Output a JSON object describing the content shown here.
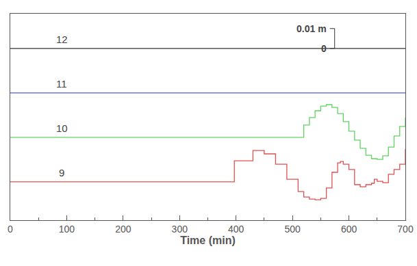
{
  "chart_data": {
    "type": "line",
    "x_label": "Time (min)",
    "xlim": [
      0,
      700
    ],
    "xticks": [
      0,
      100,
      200,
      300,
      400,
      500,
      600,
      700
    ],
    "ylim": [
      -0.0865,
      0.0175
    ],
    "tick_labels": "x",
    "grid": false,
    "line_style": "steps",
    "scale_bar": {
      "length": 0.01,
      "label": "0.01 m",
      "zero_label": "0"
    },
    "series": [
      {
        "name": "12",
        "color": "#333333",
        "x": [
          0,
          700
        ],
        "values": [
          0,
          0
        ]
      },
      {
        "name": "11",
        "color": "#4a5fe0",
        "x": [
          0,
          700
        ],
        "values": [
          -0.0224,
          -0.0224
        ]
      },
      {
        "name": "10",
        "color": "#5fd35f",
        "x": [
          0,
          519,
          520,
          530,
          540,
          550,
          560,
          570,
          580,
          590,
          600,
          610,
          620,
          630,
          640,
          650,
          660,
          670,
          680,
          690,
          700
        ],
        "values": [
          -0.0448,
          -0.0448,
          -0.0386,
          -0.0348,
          -0.0314,
          -0.029,
          -0.0283,
          -0.0297,
          -0.0328,
          -0.0369,
          -0.0417,
          -0.0462,
          -0.0503,
          -0.0538,
          -0.0555,
          -0.0559,
          -0.0541,
          -0.0497,
          -0.0441,
          -0.0393,
          -0.0348
        ]
      },
      {
        "name": "9",
        "color": "#e05050",
        "x": [
          0,
          396,
          397,
          430,
          450,
          470,
          490,
          510,
          520,
          530,
          540,
          550,
          560,
          570,
          580,
          585,
          590,
          595,
          600,
          610,
          620,
          630,
          640,
          645,
          650,
          660,
          670,
          680,
          690,
          700
        ],
        "values": [
          -0.0672,
          -0.0672,
          -0.0566,
          -0.0514,
          -0.0531,
          -0.0583,
          -0.0659,
          -0.0721,
          -0.0748,
          -0.0759,
          -0.0762,
          -0.0755,
          -0.0703,
          -0.0624,
          -0.0576,
          -0.0569,
          -0.0583,
          -0.0583,
          -0.061,
          -0.0686,
          -0.0697,
          -0.0686,
          -0.0679,
          -0.0659,
          -0.0669,
          -0.0676,
          -0.0634,
          -0.061,
          -0.0583,
          -0.0507
        ]
      }
    ]
  }
}
